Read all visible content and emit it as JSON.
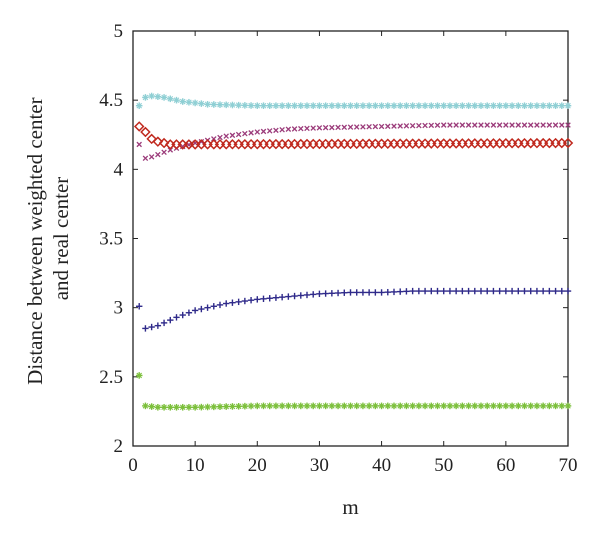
{
  "chart_data": {
    "type": "scatter",
    "title": "",
    "xlabel": "m",
    "ylabel_lines": [
      "Distance between weighted center",
      "and real center"
    ],
    "xlim": [
      0,
      70
    ],
    "ylim": [
      2,
      5
    ],
    "xticks": [
      0,
      10,
      20,
      30,
      40,
      50,
      60,
      70
    ],
    "yticks": [
      2,
      2.5,
      3,
      3.5,
      4,
      4.5,
      5
    ],
    "ytick_labels": [
      "2",
      "2.5",
      "3",
      "3.5",
      "4",
      "4.5",
      "5"
    ],
    "grid": false,
    "legend": "none",
    "x_range": {
      "start": 1,
      "end": 70,
      "step": 1
    },
    "series": [
      {
        "marker": "star",
        "color": "#8fcfd4",
        "profile": [
          [
            1,
            4.46
          ],
          [
            2,
            4.52
          ],
          [
            3,
            4.53
          ],
          [
            5,
            4.52
          ],
          [
            8,
            4.49
          ],
          [
            12,
            4.47
          ],
          [
            20,
            4.46
          ],
          [
            70,
            4.46
          ]
        ]
      },
      {
        "marker": "x",
        "color": "#9b3b7a",
        "profile": [
          [
            1,
            4.18
          ],
          [
            2,
            4.08
          ],
          [
            3,
            4.09
          ],
          [
            6,
            4.14
          ],
          [
            10,
            4.19
          ],
          [
            15,
            4.24
          ],
          [
            20,
            4.27
          ],
          [
            25,
            4.29
          ],
          [
            30,
            4.3
          ],
          [
            40,
            4.31
          ],
          [
            50,
            4.32
          ],
          [
            60,
            4.32
          ],
          [
            70,
            4.32
          ]
        ]
      },
      {
        "marker": "diamond",
        "color": "#c0291e",
        "profile": [
          [
            1,
            4.31
          ],
          [
            2,
            4.27
          ],
          [
            3,
            4.22
          ],
          [
            4,
            4.2
          ],
          [
            6,
            4.18
          ],
          [
            10,
            4.18
          ],
          [
            70,
            4.19
          ]
        ]
      },
      {
        "marker": "plus",
        "color": "#2f2a8a",
        "profile": [
          [
            1,
            3.01
          ],
          [
            2,
            2.85
          ],
          [
            4,
            2.87
          ],
          [
            7,
            2.93
          ],
          [
            10,
            2.98
          ],
          [
            15,
            3.03
          ],
          [
            20,
            3.06
          ],
          [
            25,
            3.08
          ],
          [
            30,
            3.1
          ],
          [
            35,
            3.11
          ],
          [
            40,
            3.11
          ],
          [
            45,
            3.12
          ],
          [
            70,
            3.12
          ]
        ]
      },
      {
        "marker": "star",
        "color": "#7bbf3a",
        "profile": [
          [
            1,
            2.51
          ],
          [
            2,
            2.29
          ],
          [
            4,
            2.28
          ],
          [
            10,
            2.28
          ],
          [
            20,
            2.29
          ],
          [
            70,
            2.29
          ]
        ]
      }
    ]
  }
}
